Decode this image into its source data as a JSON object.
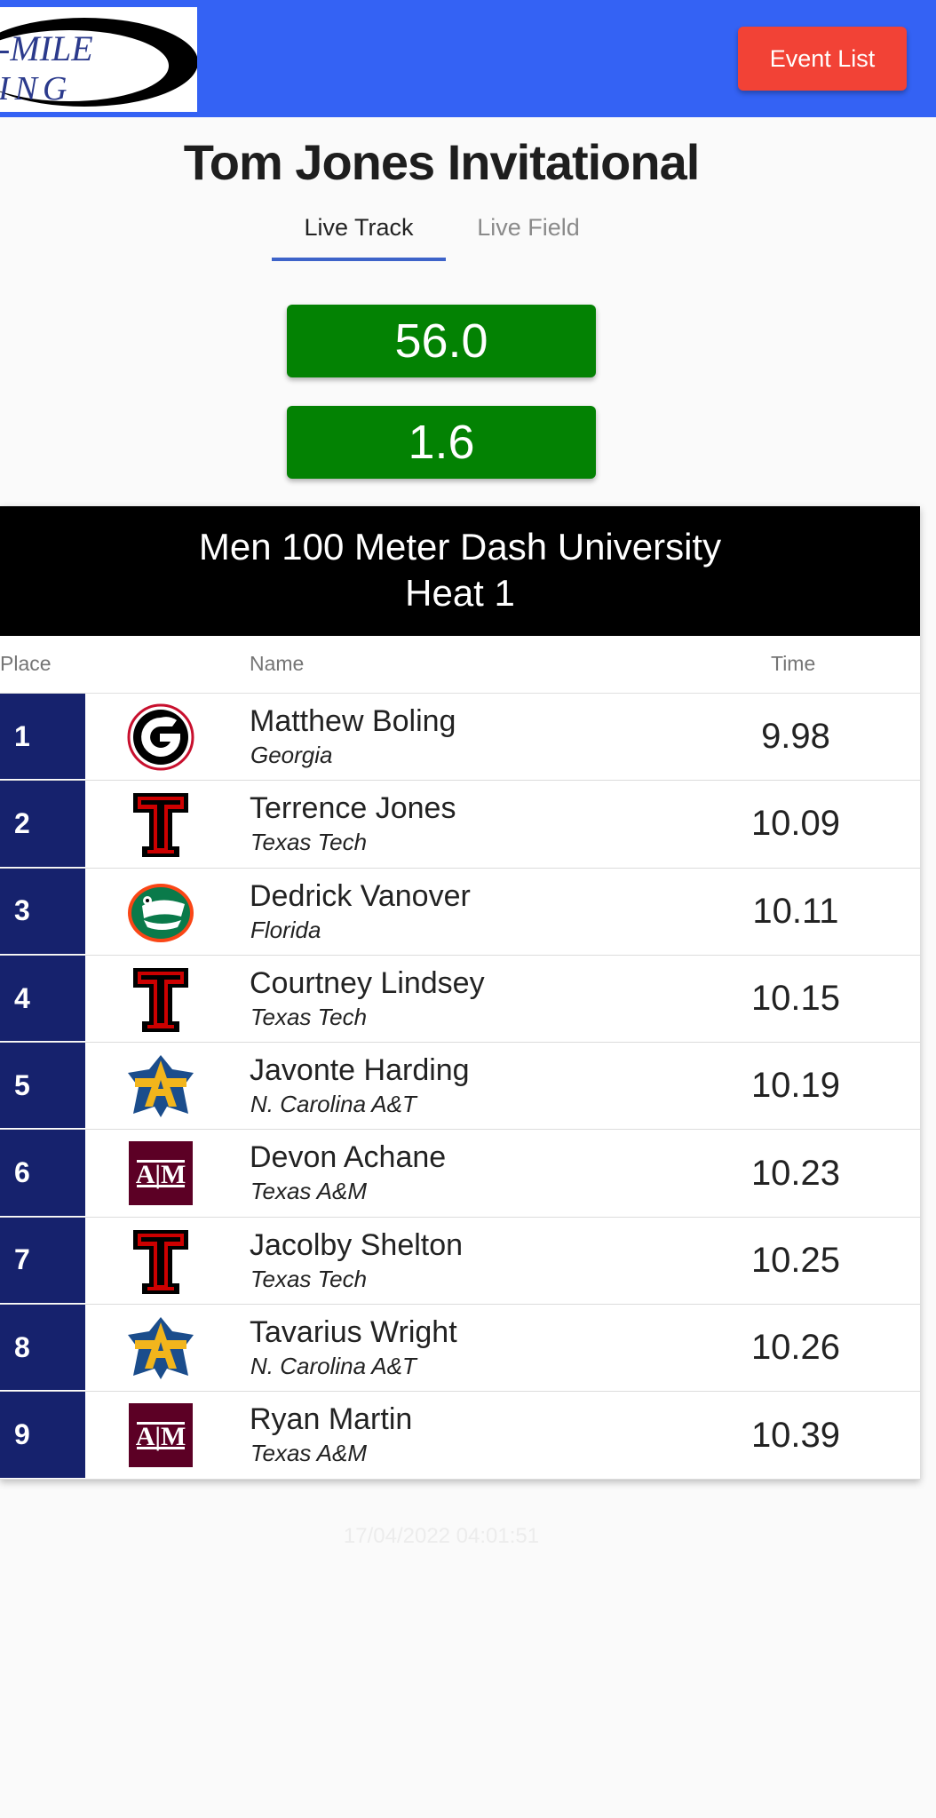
{
  "header": {
    "logo_text_top": "-MILE",
    "logo_text_bottom": "ING",
    "event_list_label": "Event List"
  },
  "meet": {
    "title": "Tom Jones Invitational"
  },
  "tabs": [
    {
      "label": "Live Track",
      "active": true
    },
    {
      "label": "Live Field",
      "active": false
    }
  ],
  "indicators": {
    "time": "56.0",
    "wind": "1.6"
  },
  "colors": {
    "topbar": "#3462f4",
    "event_button": "#f24236",
    "indicator_green": "#038203",
    "place_column": "#16226d",
    "tab_underline": "#3d63c9"
  },
  "race": {
    "title": "Men 100 Meter Dash University",
    "heat": "Heat 1",
    "columns": {
      "place": "Place",
      "name": "Name",
      "time": "Time"
    },
    "results": [
      {
        "place": "1",
        "name": "Matthew Boling",
        "team": "Georgia",
        "time": "9.98",
        "logo": "georgia-g-icon"
      },
      {
        "place": "2",
        "name": "Terrence Jones",
        "team": "Texas Tech",
        "time": "10.09",
        "logo": "texas-tech-icon"
      },
      {
        "place": "3",
        "name": "Dedrick Vanover",
        "team": "Florida",
        "time": "10.11",
        "logo": "florida-gator-icon"
      },
      {
        "place": "4",
        "name": "Courtney Lindsey",
        "team": "Texas Tech",
        "time": "10.15",
        "logo": "texas-tech-icon"
      },
      {
        "place": "5",
        "name": "Javonte Harding",
        "team": "N. Carolina A&T",
        "time": "10.19",
        "logo": "nc-at-icon"
      },
      {
        "place": "6",
        "name": "Devon Achane",
        "team": "Texas A&M",
        "time": "10.23",
        "logo": "texas-am-icon"
      },
      {
        "place": "7",
        "name": "Jacolby Shelton",
        "team": "Texas Tech",
        "time": "10.25",
        "logo": "texas-tech-icon"
      },
      {
        "place": "8",
        "name": "Tavarius Wright",
        "team": "N. Carolina A&T",
        "time": "10.26",
        "logo": "nc-at-icon"
      },
      {
        "place": "9",
        "name": "Ryan Martin",
        "team": "Texas A&M",
        "time": "10.39",
        "logo": "texas-am-icon"
      }
    ]
  },
  "footer": {
    "timestamp": "17/04/2022 04:01:51"
  }
}
